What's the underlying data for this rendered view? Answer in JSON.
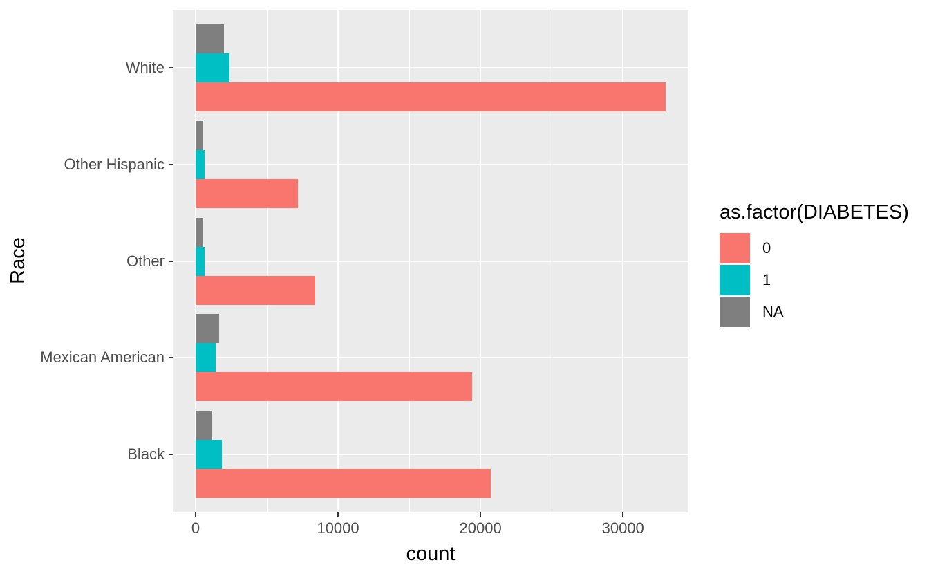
{
  "chart_data": {
    "type": "bar",
    "orientation": "horizontal",
    "title": "",
    "xlabel": "count",
    "ylabel": "Race",
    "legend_title": "as.factor(DIABETES)",
    "legend_position": "right",
    "categories": [
      "White",
      "Other Hispanic",
      "Other",
      "Mexican American",
      "Black"
    ],
    "series": [
      {
        "name": "0",
        "color": "#F8766D",
        "values": [
          33000,
          7200,
          8400,
          19400,
          20700
        ]
      },
      {
        "name": "1",
        "color": "#00BFC4",
        "values": [
          2400,
          630,
          630,
          1400,
          1850
        ]
      },
      {
        "name": "NA",
        "color": "#7F7F7F",
        "values": [
          2000,
          530,
          530,
          1640,
          1150
        ]
      }
    ],
    "bar_order_top_to_bottom": [
      "NA",
      "1",
      "0"
    ],
    "x_ticks": [
      0,
      10000,
      20000,
      30000
    ],
    "x_tick_labels": [
      "0",
      "10000",
      "20000",
      "30000"
    ],
    "x_minor_ticks": [
      5000,
      15000,
      25000
    ],
    "xlim": [
      -1600,
      34600
    ],
    "grid": true,
    "colors": {
      "panel_bg": "#EBEBEB",
      "grid": "#FFFFFF",
      "tick_mark": "#333333",
      "axis_text": "#4D4D4D",
      "axis_title": "#000000"
    }
  }
}
